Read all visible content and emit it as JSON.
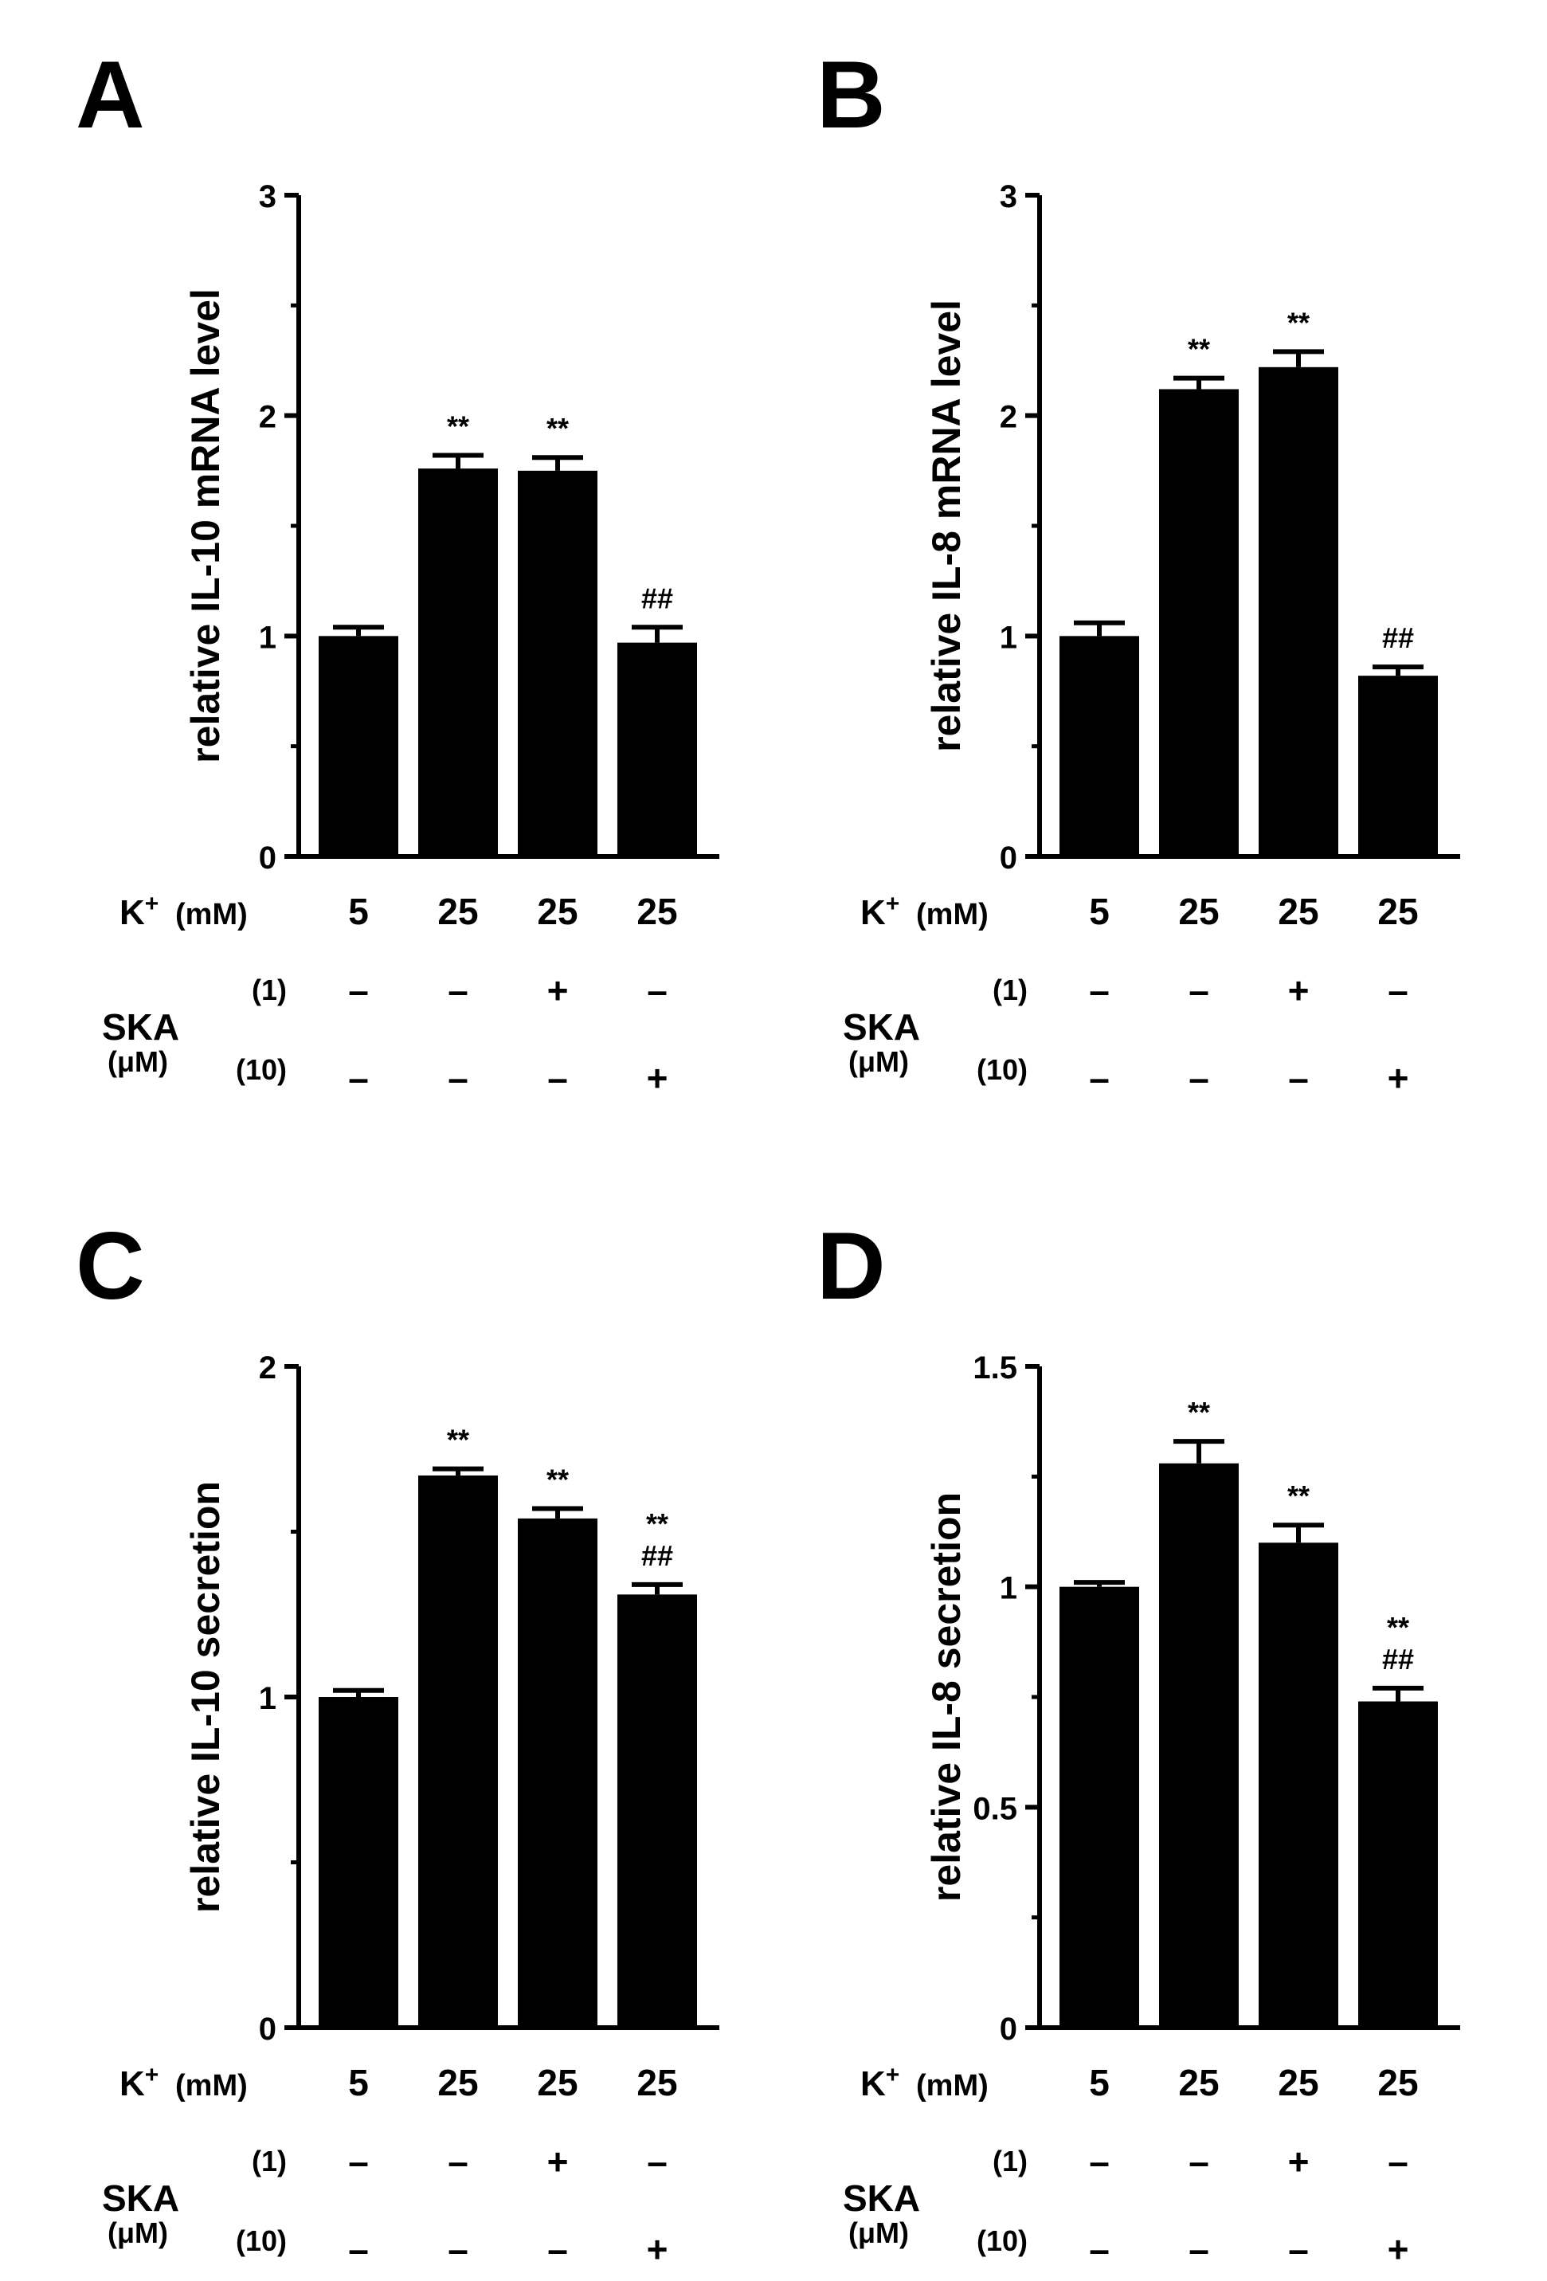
{
  "chart_data": [
    {
      "panel": "A",
      "type": "bar",
      "ylabel": "relative IL-10 mRNA level",
      "ylim": [
        0,
        3
      ],
      "yticks": [
        "0",
        "1",
        "2",
        "3"
      ],
      "categories": [
        "5",
        "25",
        "25",
        "25"
      ],
      "values": [
        1.0,
        1.76,
        1.75,
        0.97
      ],
      "errors": [
        0.04,
        0.06,
        0.06,
        0.07
      ],
      "significance": [
        [],
        [
          "**"
        ],
        [
          "**"
        ],
        [
          "##"
        ]
      ]
    },
    {
      "panel": "B",
      "type": "bar",
      "ylabel": "relative IL-8 mRNA level",
      "ylim": [
        0,
        3
      ],
      "yticks": [
        "0",
        "1",
        "2",
        "3"
      ],
      "categories": [
        "5",
        "25",
        "25",
        "25"
      ],
      "values": [
        1.0,
        2.12,
        2.22,
        0.82
      ],
      "errors": [
        0.06,
        0.05,
        0.07,
        0.04
      ],
      "significance": [
        [],
        [
          "**"
        ],
        [
          "**"
        ],
        [
          "##"
        ]
      ]
    },
    {
      "panel": "C",
      "type": "bar",
      "ylabel": "relative IL-10 secretion",
      "ylim": [
        0,
        2
      ],
      "yticks": [
        "0",
        "1",
        "2"
      ],
      "categories": [
        "5",
        "25",
        "25",
        "25"
      ],
      "values": [
        1.0,
        1.67,
        1.54,
        1.31
      ],
      "errors": [
        0.02,
        0.02,
        0.03,
        0.03
      ],
      "significance": [
        [],
        [
          "**"
        ],
        [
          "**"
        ],
        [
          "**",
          "##"
        ]
      ]
    },
    {
      "panel": "D",
      "type": "bar",
      "ylabel": "relative IL-8 secretion",
      "ylim": [
        0,
        1.5
      ],
      "yticks": [
        "0",
        "0.5",
        "1",
        "1.5"
      ],
      "categories": [
        "5",
        "25",
        "25",
        "25"
      ],
      "values": [
        1.0,
        1.28,
        1.1,
        0.74
      ],
      "errors": [
        0.01,
        0.05,
        0.04,
        0.03
      ],
      "significance": [
        [],
        [
          "**"
        ],
        [
          "**"
        ],
        [
          "**",
          "##"
        ]
      ]
    }
  ],
  "conditions": {
    "k_label": "K",
    "k_sup": "+",
    "k_unit": "(mM)",
    "ska_label": "SKA",
    "ska_unit": "(μM)",
    "ska_1_label": "(1)",
    "ska_10_label": "(10)",
    "ska_1_row": [
      "–",
      "–",
      "+",
      "–"
    ],
    "ska_10_row": [
      "–",
      "–",
      "–",
      "+"
    ]
  }
}
